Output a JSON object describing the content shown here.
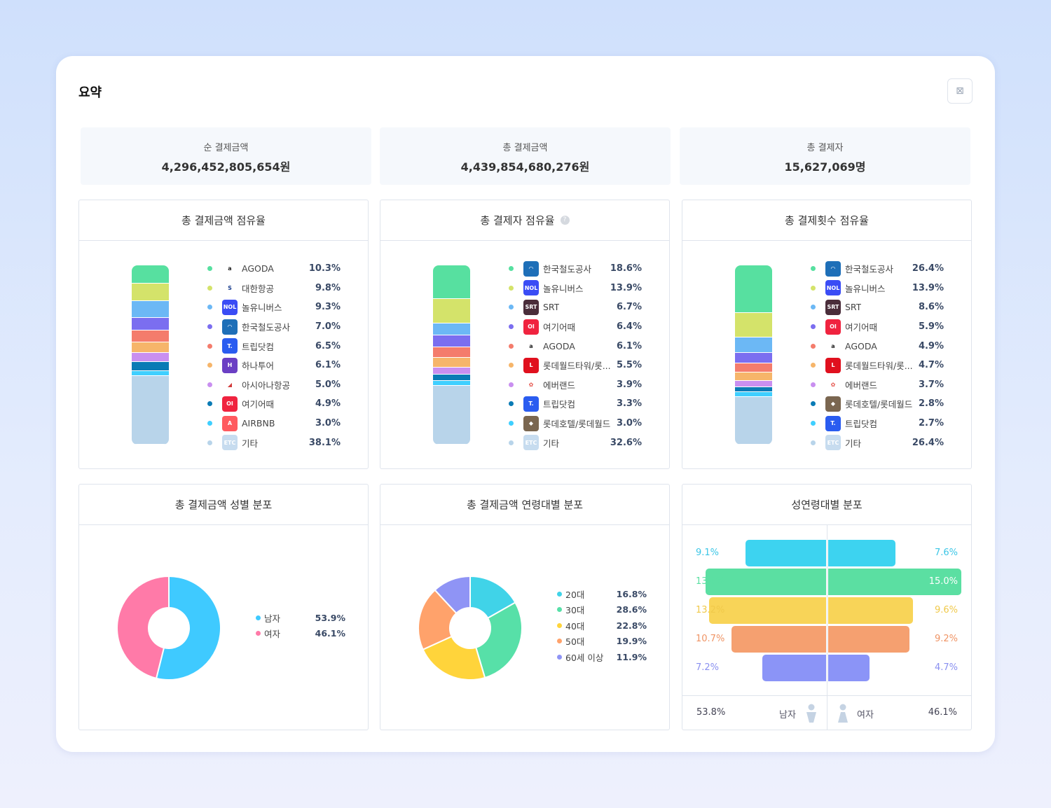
{
  "title": "요약",
  "export_icon": "excel-download-icon",
  "stats": [
    {
      "label": "순 결제금액",
      "value": "4,296,452,805,654원"
    },
    {
      "label": "총 결제금액",
      "value": "4,439,854,680,276원"
    },
    {
      "label": "총 결제자",
      "value": "15,627,069명"
    }
  ],
  "share_panels": [
    {
      "title": "총 결제금액 점유율",
      "help": false,
      "items": [
        {
          "name": "AGODA",
          "value": "10.3%",
          "pct": 10.3,
          "color": "#57e0a0",
          "icon": "agoda-logo"
        },
        {
          "name": "대한항공",
          "value": "9.8%",
          "pct": 9.8,
          "color": "#d4e36a",
          "icon": "korean-air-logo"
        },
        {
          "name": "놀유니버스",
          "value": "9.3%",
          "pct": 9.3,
          "color": "#6cb8f5",
          "icon": "nol-logo"
        },
        {
          "name": "한국철도공사",
          "value": "7.0%",
          "pct": 7.0,
          "color": "#7b6ef0",
          "icon": "korail-logo"
        },
        {
          "name": "트립닷컴",
          "value": "6.5%",
          "pct": 6.5,
          "color": "#f47c6c",
          "icon": "tripcom-logo"
        },
        {
          "name": "하나투어",
          "value": "6.1%",
          "pct": 6.1,
          "color": "#f6b56a",
          "icon": "hanatour-logo"
        },
        {
          "name": "아시아나항공",
          "value": "5.0%",
          "pct": 5.0,
          "color": "#c98ff0",
          "icon": "asiana-logo"
        },
        {
          "name": "여기어때",
          "value": "4.9%",
          "pct": 4.9,
          "color": "#0a7bb5",
          "icon": "yeogi-logo"
        },
        {
          "name": "AIRBNB",
          "value": "3.0%",
          "pct": 3.0,
          "color": "#3fcfff",
          "icon": "airbnb-logo"
        },
        {
          "name": "기타",
          "value": "38.1%",
          "pct": 38.1,
          "color": "#b8d4ea",
          "icon": "etc-logo"
        }
      ]
    },
    {
      "title": "총 결제자 점유율",
      "help": true,
      "items": [
        {
          "name": "한국철도공사",
          "value": "18.6%",
          "pct": 18.6,
          "color": "#57e0a0",
          "icon": "korail-logo"
        },
        {
          "name": "놀유니버스",
          "value": "13.9%",
          "pct": 13.9,
          "color": "#d4e36a",
          "icon": "nol-logo"
        },
        {
          "name": "SRT",
          "value": "6.7%",
          "pct": 6.7,
          "color": "#6cb8f5",
          "icon": "srt-logo"
        },
        {
          "name": "여기어때",
          "value": "6.4%",
          "pct": 6.4,
          "color": "#7b6ef0",
          "icon": "yeogi-logo"
        },
        {
          "name": "AGODA",
          "value": "6.1%",
          "pct": 6.1,
          "color": "#f47c6c",
          "icon": "agoda-logo"
        },
        {
          "name": "롯데월드타워/롯...",
          "value": "5.5%",
          "pct": 5.5,
          "color": "#f6b56a",
          "icon": "lotte-world-logo"
        },
        {
          "name": "에버랜드",
          "value": "3.9%",
          "pct": 3.9,
          "color": "#c98ff0",
          "icon": "everland-logo"
        },
        {
          "name": "트립닷컴",
          "value": "3.3%",
          "pct": 3.3,
          "color": "#0a7bb5",
          "icon": "tripcom-logo"
        },
        {
          "name": "롯데호텔/롯데월드",
          "value": "3.0%",
          "pct": 3.0,
          "color": "#3fcfff",
          "icon": "lotte-hotel-logo"
        },
        {
          "name": "기타",
          "value": "32.6%",
          "pct": 32.6,
          "color": "#b8d4ea",
          "icon": "etc-logo"
        }
      ]
    },
    {
      "title": "총 결제횟수 점유율",
      "help": false,
      "items": [
        {
          "name": "한국철도공사",
          "value": "26.4%",
          "pct": 26.4,
          "color": "#57e0a0",
          "icon": "korail-logo"
        },
        {
          "name": "놀유니버스",
          "value": "13.9%",
          "pct": 13.9,
          "color": "#d4e36a",
          "icon": "nol-logo"
        },
        {
          "name": "SRT",
          "value": "8.6%",
          "pct": 8.6,
          "color": "#6cb8f5",
          "icon": "srt-logo"
        },
        {
          "name": "여기어때",
          "value": "5.9%",
          "pct": 5.9,
          "color": "#7b6ef0",
          "icon": "yeogi-logo"
        },
        {
          "name": "AGODA",
          "value": "4.9%",
          "pct": 4.9,
          "color": "#f47c6c",
          "icon": "agoda-logo"
        },
        {
          "name": "롯데월드타워/롯...",
          "value": "4.7%",
          "pct": 4.7,
          "color": "#f6b56a",
          "icon": "lotte-world-logo"
        },
        {
          "name": "에버랜드",
          "value": "3.7%",
          "pct": 3.7,
          "color": "#c98ff0",
          "icon": "everland-logo"
        },
        {
          "name": "롯데호텔/롯데월드",
          "value": "2.8%",
          "pct": 2.8,
          "color": "#0a7bb5",
          "icon": "lotte-hotel-logo"
        },
        {
          "name": "트립닷컴",
          "value": "2.7%",
          "pct": 2.7,
          "color": "#3fcfff",
          "icon": "tripcom-logo"
        },
        {
          "name": "기타",
          "value": "26.4%",
          "pct": 26.4,
          "color": "#b8d4ea",
          "icon": "etc-logo"
        }
      ]
    }
  ],
  "gender_panel": {
    "title": "총 결제금액 성별 분포",
    "items": [
      {
        "name": "남자",
        "value": "53.9%",
        "pct": 53.9,
        "color": "#3fcaff"
      },
      {
        "name": "여자",
        "value": "46.1%",
        "pct": 46.1,
        "color": "#ff7aa8"
      }
    ]
  },
  "age_panel": {
    "title": "총 결제금액 연령대별 분포",
    "items": [
      {
        "name": "20대",
        "value": "16.8%",
        "pct": 16.8,
        "color": "#40d3e8"
      },
      {
        "name": "30대",
        "value": "28.6%",
        "pct": 28.6,
        "color": "#57e0a8"
      },
      {
        "name": "40대",
        "value": "22.8%",
        "pct": 22.8,
        "color": "#ffd43b"
      },
      {
        "name": "50대",
        "value": "19.9%",
        "pct": 19.9,
        "color": "#ffa26b"
      },
      {
        "name": "60세 이상",
        "value": "11.9%",
        "pct": 11.9,
        "color": "#8f94f5"
      }
    ]
  },
  "pyramid_panel": {
    "title": "성연령대별 분포",
    "rows": [
      {
        "male": "9.1%",
        "m": 9.1,
        "female": "7.6%",
        "f": 7.6,
        "color": "#3dd3f0",
        "text": "#3cc6e6"
      },
      {
        "male": "13.6%",
        "m": 13.6,
        "female": "15.0%",
        "f": 15.0,
        "color": "#5bdfa2",
        "text": "#5bdfa2"
      },
      {
        "male": "13.2%",
        "m": 13.2,
        "female": "9.6%",
        "f": 9.6,
        "color": "#f8d458",
        "text": "#f0c94a"
      },
      {
        "male": "10.7%",
        "m": 10.7,
        "female": "9.2%",
        "f": 9.2,
        "color": "#f5a070",
        "text": "#ef9465"
      },
      {
        "male": "7.2%",
        "m": 7.2,
        "female": "4.7%",
        "f": 4.7,
        "color": "#8b94f7",
        "text": "#8a90f0"
      }
    ],
    "male_total": "53.8%",
    "male_label": "남자",
    "female_label": "여자",
    "female_total": "46.1%"
  }
}
